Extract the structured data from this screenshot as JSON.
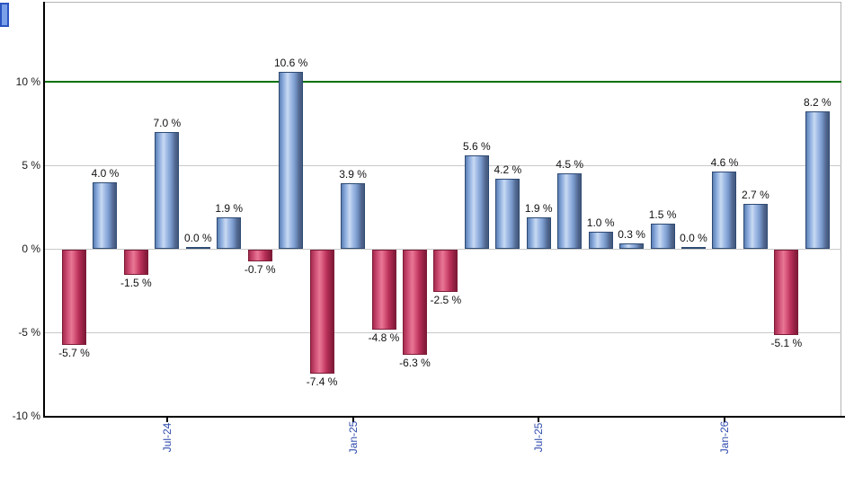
{
  "chart_data": {
    "type": "bar",
    "description": "Monthly percentage returns bar chart, blue for gains and red for losses, with a green 10% reference line",
    "values": [
      -5.7,
      4.0,
      -1.5,
      7.0,
      0.0,
      1.9,
      -0.7,
      10.6,
      -7.4,
      3.9,
      -4.8,
      -6.3,
      -2.5,
      5.6,
      4.2,
      1.9,
      4.5,
      1.0,
      0.3,
      1.5,
      0.0,
      4.6,
      2.7,
      -5.1,
      8.2
    ],
    "bar_labels": [
      "-5.7 %",
      "4.0 %",
      "-1.5 %",
      "7.0 %",
      "0.0 %",
      "1.9 %",
      "-0.7 %",
      "10.6 %",
      "-7.4 %",
      "3.9 %",
      "-4.8 %",
      "-6.3 %",
      "-2.5 %",
      "5.6 %",
      "4.2 %",
      "1.9 %",
      "4.5 %",
      "1.0 %",
      "0.3 %",
      "1.5 %",
      "0.0 %",
      "4.6 %",
      "2.7 %",
      "-5.1 %",
      "8.2 %"
    ],
    "x_tick_labels": [
      "Jul-24",
      "Jan-25",
      "Jul-25",
      "Jan-26"
    ],
    "x_tick_indices": [
      3,
      9,
      15,
      21
    ],
    "y_tick_labels": [
      "10 %",
      "5 %",
      "0 %",
      "-5 %",
      "-10 %"
    ],
    "y_tick_values": [
      10,
      5,
      0,
      -5,
      -10
    ],
    "ylim": [
      -10,
      14.8
    ],
    "gridline_values": [
      5,
      0,
      -5
    ],
    "reference_line_value": 10,
    "grid": true,
    "legend": false,
    "xlabel": "",
    "ylabel": "",
    "title": "",
    "colors": {
      "positive_bar": "#8fafdf",
      "positive_border": "#2e4a73",
      "negative_bar": "#db5c80",
      "negative_border": "#7d1b38",
      "reference_line": "#007000",
      "x_tick_text": "#2f4cad",
      "y_tick_text": "#1a1a1a",
      "grid": "#c9c9c9",
      "axis": "#000000",
      "frame": "#b4b4b4"
    }
  }
}
